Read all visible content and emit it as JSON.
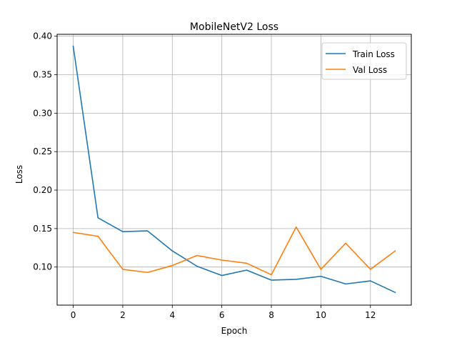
{
  "chart_data": {
    "type": "line",
    "title": "MobileNetV2 Loss",
    "xlabel": "Epoch",
    "ylabel": "Loss",
    "x": [
      0,
      1,
      2,
      3,
      4,
      5,
      6,
      7,
      8,
      9,
      10,
      11,
      12,
      13
    ],
    "xlim": [
      -0.65,
      13.65
    ],
    "ylim": [
      0.0505,
      0.4025
    ],
    "xticks": [
      0,
      2,
      4,
      6,
      8,
      10,
      12
    ],
    "xtick_labels": [
      "0",
      "2",
      "4",
      "6",
      "8",
      "10",
      "12"
    ],
    "yticks": [
      0.1,
      0.15,
      0.2,
      0.25,
      0.3,
      0.35,
      0.4
    ],
    "ytick_labels": [
      "0.10",
      "0.15",
      "0.20",
      "0.25",
      "0.30",
      "0.35",
      "0.40"
    ],
    "grid": true,
    "legend_position": "top-right",
    "series": [
      {
        "name": "Train Loss",
        "color": "#1f77b4",
        "values": [
          0.387,
          0.164,
          0.146,
          0.147,
          0.121,
          0.101,
          0.089,
          0.096,
          0.083,
          0.084,
          0.088,
          0.078,
          0.082,
          0.067
        ]
      },
      {
        "name": "Val Loss",
        "color": "#ff7f0e",
        "values": [
          0.145,
          0.14,
          0.097,
          0.093,
          0.102,
          0.115,
          0.109,
          0.105,
          0.09,
          0.152,
          0.097,
          0.131,
          0.097,
          0.121
        ]
      }
    ]
  }
}
